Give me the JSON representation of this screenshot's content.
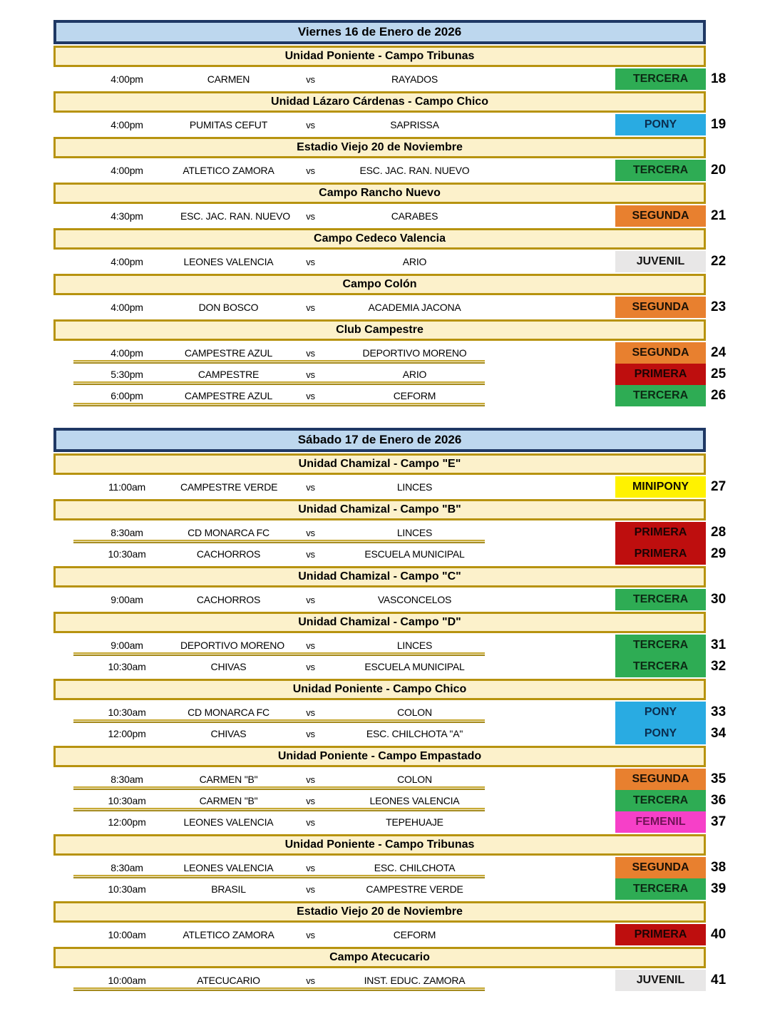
{
  "document": {
    "vs_label": "vs",
    "colors": {
      "date_bar_bg": "#BDD7EE",
      "date_bar_border": "#1F3864",
      "venue_bar_bg": "#FCF1CB",
      "venue_bar_border": "#B7930F",
      "row_underline_gold": "#B7930F"
    },
    "category_styles": {
      "PRIMERA": {
        "bg": "#BE0E0E",
        "fg": "#1c0404"
      },
      "SEGUNDA": {
        "bg": "#E8802F",
        "fg": "#1c1206"
      },
      "TERCERA": {
        "bg": "#2EAC54",
        "fg": "#0c2a14"
      },
      "JUVENIL": {
        "bg": "#E8E7E7",
        "fg": "#141414"
      },
      "PONY": {
        "bg": "#29ABE2",
        "fg": "#0b2e4f"
      },
      "MINIPONY": {
        "bg": "#FFF200",
        "fg": "#141000"
      },
      "FEMENIL": {
        "bg": "#F640C8",
        "fg": "#731258"
      }
    },
    "days": [
      {
        "date": "Viernes 16 de Enero de 2026",
        "venues": [
          {
            "name": "Unidad Poniente - Campo Tribunas",
            "matches": [
              {
                "time": "4:00pm",
                "home": "CARMEN",
                "away": "RAYADOS",
                "category": "TERCERA",
                "number": "18"
              }
            ]
          },
          {
            "name": "Unidad Lázaro Cárdenas - Campo Chico",
            "matches": [
              {
                "time": "4:00pm",
                "home": "PUMITAS CEFUT",
                "away": "SAPRISSA",
                "category": "PONY",
                "number": "19"
              }
            ]
          },
          {
            "name": "Estadio Viejo 20 de Noviembre",
            "matches": [
              {
                "time": "4:00pm",
                "home": "ATLETICO ZAMORA",
                "away": "ESC. JAC. RAN. NUEVO",
                "category": "TERCERA",
                "number": "20"
              }
            ]
          },
          {
            "name": "Campo Rancho Nuevo",
            "matches": [
              {
                "time": "4:30pm",
                "home": "ESC. JAC. RAN. NUEVO",
                "away": "CARABES",
                "category": "SEGUNDA",
                "number": "21"
              }
            ]
          },
          {
            "name": "Campo Cedeco Valencia",
            "matches": [
              {
                "time": "4:00pm",
                "home": "LEONES VALENCIA",
                "away": "ARIO",
                "category": "JUVENIL",
                "number": "22"
              }
            ]
          },
          {
            "name": "Campo Colón",
            "matches": [
              {
                "time": "4:00pm",
                "home": "DON BOSCO",
                "away": "ACADEMIA JACONA",
                "category": "SEGUNDA",
                "number": "23"
              }
            ]
          },
          {
            "name": "Club Campestre",
            "matches": [
              {
                "time": "4:00pm",
                "home": "CAMPESTRE AZUL",
                "away": "DEPORTIVO MORENO",
                "category": "SEGUNDA",
                "number": "24"
              },
              {
                "time": "5:30pm",
                "home": "CAMPESTRE",
                "away": "ARIO",
                "category": "PRIMERA",
                "number": "25"
              },
              {
                "time": "6:00pm",
                "home": "CAMPESTRE AZUL",
                "away": "CEFORM",
                "category": "TERCERA",
                "number": "26"
              }
            ]
          }
        ]
      },
      {
        "date": "Sábado 17 de Enero de 2026",
        "venues": [
          {
            "name": "Unidad Chamizal - Campo \"E\"",
            "matches": [
              {
                "time": "11:00am",
                "home": "CAMPESTRE VERDE",
                "away": "LINCES",
                "category": "MINIPONY",
                "number": "27"
              }
            ]
          },
          {
            "name": "Unidad Chamizal - Campo \"B\"",
            "matches": [
              {
                "time": "8:30am",
                "home": "CD MONARCA FC",
                "away": "LINCES",
                "category": "PRIMERA",
                "number": "28"
              },
              {
                "time": "10:30am",
                "home": "CACHORROS",
                "away": "ESCUELA MUNICIPAL",
                "category": "PRIMERA",
                "number": "29"
              }
            ]
          },
          {
            "name": "Unidad Chamizal - Campo \"C\"",
            "matches": [
              {
                "time": "9:00am",
                "home": "CACHORROS",
                "away": "VASCONCELOS",
                "category": "TERCERA",
                "number": "30"
              }
            ]
          },
          {
            "name": "Unidad Chamizal - Campo \"D\"",
            "matches": [
              {
                "time": "9:00am",
                "home": "DEPORTIVO MORENO",
                "away": "LINCES",
                "category": "TERCERA",
                "number": "31"
              },
              {
                "time": "10:30am",
                "home": "CHIVAS",
                "away": "ESCUELA MUNICIPAL",
                "category": "TERCERA",
                "number": "32"
              }
            ]
          },
          {
            "name": "Unidad Poniente - Campo Chico",
            "matches": [
              {
                "time": "10:30am",
                "home": "CD MONARCA FC",
                "away": "COLON",
                "category": "PONY",
                "number": "33"
              },
              {
                "time": "12:00pm",
                "home": "CHIVAS",
                "away": "ESC. CHILCHOTA \"A\"",
                "category": "PONY",
                "number": "34"
              }
            ]
          },
          {
            "name": "Unidad Poniente - Campo Empastado",
            "matches": [
              {
                "time": "8:30am",
                "home": "CARMEN \"B\"",
                "away": "COLON",
                "category": "SEGUNDA",
                "number": "35"
              },
              {
                "time": "10:30am",
                "home": "CARMEN \"B\"",
                "away": "LEONES VALENCIA",
                "category": "TERCERA",
                "number": "36"
              },
              {
                "time": "12:00pm",
                "home": "LEONES VALENCIA",
                "away": "TEPEHUAJE",
                "category": "FEMENIL",
                "number": "37"
              }
            ]
          },
          {
            "name": "Unidad Poniente - Campo Tribunas",
            "matches": [
              {
                "time": "8:30am",
                "home": "LEONES VALENCIA",
                "away": "ESC. CHILCHOTA",
                "category": "SEGUNDA",
                "number": "38"
              },
              {
                "time": "10:30am",
                "home": "BRASIL",
                "away": "CAMPESTRE VERDE",
                "category": "TERCERA",
                "number": "39"
              }
            ]
          },
          {
            "name": "Estadio Viejo 20 de Noviembre",
            "matches": [
              {
                "time": "10:00am",
                "home": "ATLETICO ZAMORA",
                "away": "CEFORM",
                "category": "PRIMERA",
                "number": "40"
              }
            ]
          },
          {
            "name": "Campo Atecucario",
            "matches": [
              {
                "time": "10:00am",
                "home": "ATECUCARIO",
                "away": "INST. EDUC. ZAMORA",
                "category": "JUVENIL",
                "number": "41"
              }
            ]
          }
        ]
      }
    ]
  }
}
